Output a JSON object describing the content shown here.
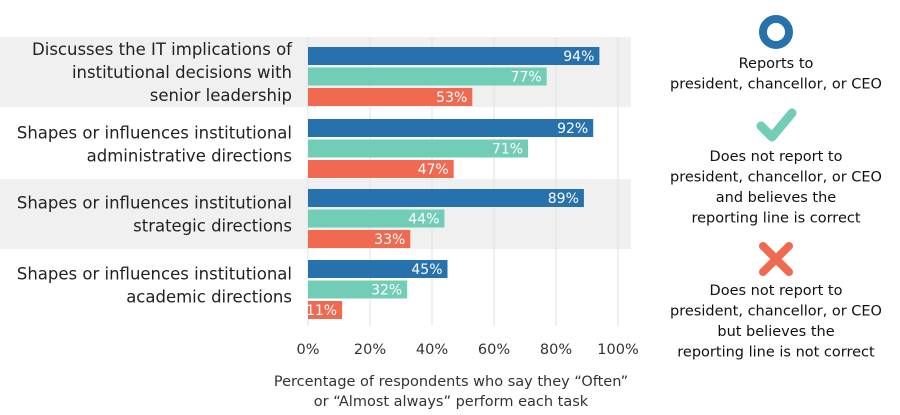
{
  "chart_data": {
    "type": "bar",
    "orientation": "horizontal",
    "categories": [
      [
        "Discusses the IT implications of",
        "institutional decisions with",
        "senior leadership"
      ],
      [
        "Shapes or influences institutional",
        "administrative directions"
      ],
      [
        "Shapes or influences institutional",
        "strategic directions"
      ],
      [
        "Shapes or influences institutional",
        "academic directions"
      ]
    ],
    "series": [
      {
        "name": [
          "Reports to",
          "president, chancellor, or CEO"
        ],
        "values": [
          94,
          92,
          89,
          45
        ],
        "color": "#2771ac",
        "icon": "circle-icon"
      },
      {
        "name": [
          "Does not report to",
          "president, chancellor, or CEO",
          "and believes the",
          "reporting line is correct"
        ],
        "values": [
          77,
          71,
          44,
          32
        ],
        "color": "#72cdb6",
        "icon": "checkmark-icon"
      },
      {
        "name": [
          "Does not report to",
          "president, chancellor, or CEO",
          "but believes the",
          "reporting line is not correct"
        ],
        "values": [
          53,
          47,
          33,
          11
        ],
        "color": "#ef6a50",
        "icon": "x-icon"
      }
    ],
    "value_suffix": "%",
    "xlim": [
      0,
      100
    ],
    "xticks": [
      0,
      20,
      40,
      60,
      80,
      100
    ],
    "tick_labels": [
      "0%",
      "20%",
      "40%",
      "60%",
      "80%",
      "100%"
    ],
    "xlabel": [
      "Percentage of respondents who say they “Often”",
      "or “Almost always” perform each task"
    ],
    "grid": true,
    "legend_position": "right",
    "band_color": "#f0f0f0",
    "grid_color": "#e2e2e2"
  }
}
